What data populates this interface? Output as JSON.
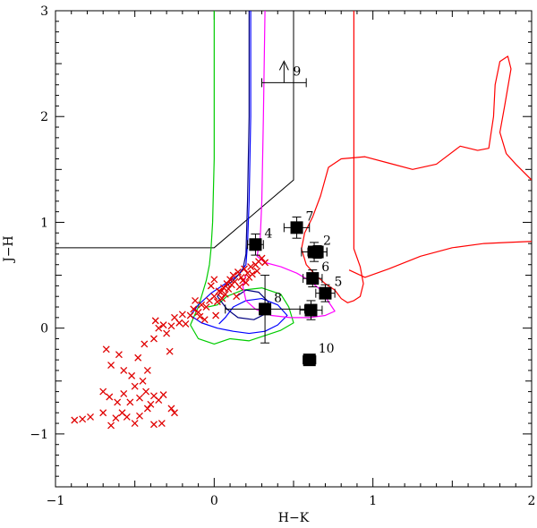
{
  "chart_data": {
    "type": "scatter",
    "xlabel": "H−K",
    "ylabel": "J−H",
    "xlim": [
      -1,
      2
    ],
    "ylim": [
      -1.5,
      3
    ],
    "x_ticks": [
      {
        "value": -1,
        "label": "−1"
      },
      {
        "value": 0,
        "label": "0"
      },
      {
        "value": 1,
        "label": "1"
      },
      {
        "value": 2,
        "label": "2"
      }
    ],
    "y_ticks": [
      {
        "value": -1,
        "label": "−1"
      },
      {
        "value": 0,
        "label": "0"
      },
      {
        "value": 1,
        "label": "1"
      },
      {
        "value": 2,
        "label": "2"
      },
      {
        "value": 3,
        "label": "3"
      }
    ],
    "grid": false,
    "labeled_sources": [
      {
        "label": "2",
        "x": 0.63,
        "y": 0.72,
        "xerr": 0.08,
        "yerr": 0.09
      },
      {
        "label": "4",
        "x": 0.26,
        "y": 0.79,
        "xerr": 0.05,
        "yerr": 0.1
      },
      {
        "label": "5",
        "x": 0.7,
        "y": 0.33,
        "xerr": 0.06,
        "yerr": 0.08
      },
      {
        "label": "6",
        "x": 0.62,
        "y": 0.47,
        "xerr": 0.06,
        "yerr": 0.08
      },
      {
        "label": "7",
        "x": 0.52,
        "y": 0.95,
        "xerr": 0.08,
        "yerr": 0.1
      },
      {
        "label": "8",
        "x": 0.32,
        "y": 0.18,
        "xerr": 0.25,
        "yerr": 0.32
      },
      {
        "label": "9",
        "x": 0.44,
        "y": 2.32,
        "xerr": 0.14,
        "yerr": 0,
        "lower_limit": true
      },
      {
        "label": "10",
        "x": 0.6,
        "y": -0.3,
        "xerr": 0.04,
        "yerr": 0.04
      },
      {
        "label": "",
        "x": 0.65,
        "y": 0.72,
        "xerr": 0.06,
        "yerr": 0.06
      },
      {
        "label": "",
        "x": 0.61,
        "y": 0.17,
        "xerr": 0.07,
        "yerr": 0.09
      }
    ],
    "cross_points": [
      [
        -0.88,
        -0.87
      ],
      [
        -0.83,
        -0.86
      ],
      [
        -0.78,
        -0.84
      ],
      [
        -0.7,
        -0.8
      ],
      [
        -0.65,
        -0.92
      ],
      [
        -0.62,
        -0.85
      ],
      [
        -0.58,
        -0.8
      ],
      [
        -0.55,
        -0.84
      ],
      [
        -0.5,
        -0.9
      ],
      [
        -0.47,
        -0.83
      ],
      [
        -0.42,
        -0.76
      ],
      [
        -0.38,
        -0.91
      ],
      [
        -0.33,
        -0.9
      ],
      [
        -0.27,
        -0.76
      ],
      [
        -0.25,
        -0.8
      ],
      [
        -0.7,
        -0.6
      ],
      [
        -0.66,
        -0.65
      ],
      [
        -0.61,
        -0.7
      ],
      [
        -0.57,
        -0.62
      ],
      [
        -0.53,
        -0.7
      ],
      [
        -0.5,
        -0.55
      ],
      [
        -0.47,
        -0.66
      ],
      [
        -0.43,
        -0.6
      ],
      [
        -0.4,
        -0.72
      ],
      [
        -0.38,
        -0.64
      ],
      [
        -0.35,
        -0.68
      ],
      [
        -0.32,
        -0.63
      ],
      [
        -0.45,
        -0.5
      ],
      [
        -0.52,
        -0.45
      ],
      [
        -0.57,
        -0.4
      ],
      [
        -0.65,
        -0.35
      ],
      [
        -0.68,
        -0.2
      ],
      [
        -0.6,
        -0.25
      ],
      [
        -0.48,
        -0.28
      ],
      [
        -0.44,
        -0.15
      ],
      [
        -0.38,
        -0.1
      ],
      [
        -0.35,
        0.0
      ],
      [
        -0.37,
        0.07
      ],
      [
        -0.32,
        0.03
      ],
      [
        -0.3,
        -0.05
      ],
      [
        -0.27,
        0.02
      ],
      [
        -0.25,
        0.1
      ],
      [
        -0.22,
        0.05
      ],
      [
        -0.2,
        0.13
      ],
      [
        -0.18,
        0.04
      ],
      [
        -0.15,
        0.12
      ],
      [
        -0.13,
        0.18
      ],
      [
        -0.1,
        0.15
      ],
      [
        -0.08,
        0.22
      ],
      [
        -0.05,
        0.2
      ],
      [
        -0.03,
        0.26
      ],
      [
        0.0,
        0.3
      ],
      [
        0.02,
        0.25
      ],
      [
        0.04,
        0.34
      ],
      [
        0.06,
        0.38
      ],
      [
        0.08,
        0.42
      ],
      [
        0.1,
        0.46
      ],
      [
        0.12,
        0.5
      ],
      [
        0.15,
        0.53
      ],
      [
        0.17,
        0.48
      ],
      [
        0.19,
        0.56
      ],
      [
        0.21,
        0.52
      ],
      [
        0.23,
        0.58
      ],
      [
        0.26,
        0.6
      ],
      [
        0.28,
        0.63
      ],
      [
        0.3,
        0.66
      ],
      [
        0.32,
        0.62
      ],
      [
        -0.02,
        0.4
      ],
      [
        0.0,
        0.46
      ],
      [
        0.03,
        0.35
      ],
      [
        0.05,
        0.28
      ],
      [
        0.07,
        0.32
      ],
      [
        0.09,
        0.37
      ],
      [
        0.11,
        0.41
      ],
      [
        0.13,
        0.44
      ],
      [
        0.16,
        0.39
      ],
      [
        0.18,
        0.45
      ],
      [
        0.2,
        0.43
      ],
      [
        0.22,
        0.48
      ],
      [
        0.24,
        0.51
      ],
      [
        0.27,
        0.54
      ],
      [
        0.14,
        0.3
      ],
      [
        0.01,
        0.12
      ],
      [
        -0.06,
        0.08
      ],
      [
        -0.12,
        0.26
      ],
      [
        -0.09,
        0.11
      ],
      [
        -0.28,
        -0.22
      ],
      [
        -0.42,
        -0.4
      ]
    ],
    "boundary_line": [
      [
        -1,
        0.76
      ],
      [
        0.0,
        0.76
      ],
      [
        0.5,
        1.4
      ],
      [
        0.5,
        3.0
      ]
    ],
    "curves": [
      {
        "color": "#00cc00",
        "points": [
          [
            0.0,
            3.0
          ],
          [
            0.0,
            2.3
          ],
          [
            0.0,
            1.6
          ],
          [
            -0.01,
            1.0
          ],
          [
            -0.02,
            0.75
          ],
          [
            -0.03,
            0.6
          ],
          [
            -0.05,
            0.45
          ],
          [
            -0.08,
            0.3
          ],
          [
            -0.1,
            0.2
          ],
          [
            -0.13,
            0.1
          ],
          [
            -0.15,
            0.03
          ],
          [
            -0.1,
            -0.1
          ],
          [
            0.0,
            -0.15
          ],
          [
            0.1,
            -0.1
          ],
          [
            0.22,
            -0.12
          ],
          [
            0.32,
            -0.07
          ],
          [
            0.42,
            -0.02
          ],
          [
            0.5,
            0.05
          ],
          [
            0.47,
            0.2
          ],
          [
            0.42,
            0.32
          ],
          [
            0.3,
            0.38
          ],
          [
            0.18,
            0.36
          ],
          [
            0.08,
            0.3
          ],
          [
            0.02,
            0.22
          ],
          [
            -0.04,
            0.2
          ]
        ]
      },
      {
        "color": "#0000ff",
        "points": [
          [
            0.23,
            3.0
          ],
          [
            0.23,
            2.0
          ],
          [
            0.22,
            1.2
          ],
          [
            0.21,
            0.8
          ],
          [
            0.2,
            0.6
          ],
          [
            0.15,
            0.5
          ],
          [
            0.05,
            0.4
          ],
          [
            -0.02,
            0.33
          ],
          [
            -0.1,
            0.22
          ],
          [
            -0.15,
            0.12
          ],
          [
            -0.08,
            0.05
          ],
          [
            0.02,
            0.0
          ],
          [
            0.12,
            -0.03
          ],
          [
            0.22,
            -0.05
          ],
          [
            0.32,
            -0.03
          ],
          [
            0.4,
            0.03
          ],
          [
            0.46,
            0.12
          ],
          [
            0.4,
            0.22
          ],
          [
            0.3,
            0.28
          ],
          [
            0.2,
            0.26
          ],
          [
            0.12,
            0.2
          ],
          [
            0.07,
            0.1
          ],
          [
            0.03,
            0.04
          ]
        ]
      },
      {
        "color": "#000080",
        "points": [
          [
            0.22,
            3.0
          ],
          [
            0.22,
            2.0
          ],
          [
            0.21,
            1.2
          ],
          [
            0.2,
            0.7
          ],
          [
            0.18,
            0.55
          ],
          [
            0.12,
            0.45
          ],
          [
            0.06,
            0.38
          ],
          [
            0.02,
            0.3
          ],
          [
            0.08,
            0.18
          ],
          [
            0.15,
            0.1
          ],
          [
            0.25,
            0.08
          ],
          [
            0.33,
            0.14
          ],
          [
            0.34,
            0.25
          ],
          [
            0.28,
            0.34
          ],
          [
            0.2,
            0.36
          ],
          [
            0.14,
            0.3
          ]
        ]
      },
      {
        "color": "#ff00ff",
        "points": [
          [
            0.32,
            3.0
          ],
          [
            0.31,
            2.0
          ],
          [
            0.3,
            1.2
          ],
          [
            0.29,
            0.85
          ],
          [
            0.27,
            0.68
          ],
          [
            0.32,
            0.62
          ],
          [
            0.42,
            0.58
          ],
          [
            0.52,
            0.52
          ],
          [
            0.6,
            0.45
          ],
          [
            0.68,
            0.35
          ],
          [
            0.72,
            0.25
          ],
          [
            0.76,
            0.16
          ],
          [
            0.7,
            0.12
          ],
          [
            0.6,
            0.1
          ],
          [
            0.48,
            0.1
          ],
          [
            0.36,
            0.12
          ],
          [
            0.26,
            0.18
          ],
          [
            0.2,
            0.26
          ],
          [
            0.18,
            0.4
          ],
          [
            0.2,
            0.5
          ]
        ]
      },
      {
        "color": "#ff0000",
        "points": [
          [
            0.88,
            3.0
          ],
          [
            0.88,
            2.2
          ],
          [
            0.88,
            1.5
          ],
          [
            0.88,
            1.0
          ],
          [
            0.88,
            0.75
          ],
          [
            0.92,
            0.58
          ],
          [
            0.94,
            0.42
          ],
          [
            0.92,
            0.3
          ],
          [
            0.88,
            0.26
          ],
          [
            0.84,
            0.24
          ],
          [
            0.8,
            0.28
          ],
          [
            0.76,
            0.36
          ],
          [
            0.7,
            0.42
          ],
          [
            0.64,
            0.5
          ],
          [
            0.58,
            0.6
          ],
          [
            0.55,
            0.75
          ],
          [
            0.57,
            0.9
          ],
          [
            0.62,
            1.05
          ],
          [
            0.67,
            1.25
          ],
          [
            0.72,
            1.52
          ],
          [
            0.8,
            1.6
          ],
          [
            0.95,
            1.62
          ],
          [
            1.1,
            1.56
          ],
          [
            1.25,
            1.5
          ],
          [
            1.4,
            1.55
          ],
          [
            1.55,
            1.72
          ],
          [
            1.66,
            1.68
          ],
          [
            1.73,
            1.7
          ],
          [
            1.76,
            2.0
          ],
          [
            1.77,
            2.3
          ],
          [
            1.8,
            2.52
          ],
          [
            1.85,
            2.57
          ],
          [
            1.87,
            2.45
          ],
          [
            1.83,
            2.1
          ],
          [
            1.8,
            1.85
          ],
          [
            1.84,
            1.65
          ],
          [
            1.9,
            1.55
          ],
          [
            2.0,
            1.4
          ]
        ]
      },
      {
        "color": "#ff0000",
        "points": [
          [
            0.85,
            0.55
          ],
          [
            0.95,
            0.48
          ],
          [
            1.1,
            0.56
          ],
          [
            1.3,
            0.68
          ],
          [
            1.5,
            0.76
          ],
          [
            1.7,
            0.8
          ],
          [
            1.85,
            0.81
          ],
          [
            2.0,
            0.82
          ]
        ]
      }
    ]
  }
}
